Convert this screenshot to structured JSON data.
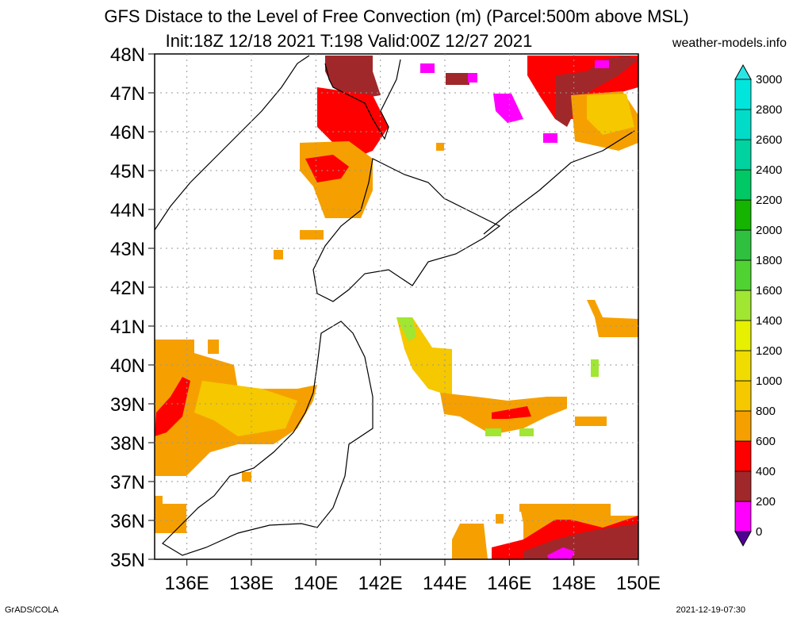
{
  "header": {
    "title_line1": "GFS Distace to the Level of Free Convection (m) (Parcel:500m above MSL)",
    "title_line2": "Init:18Z 12/18 2021 T:198 Valid:00Z 12/27 2021",
    "site": "weather-models.info"
  },
  "footer": {
    "left": "GrADS/COLA",
    "right": "2021-12-19-07:30"
  },
  "map": {
    "lat_labels": [
      "48N",
      "47N",
      "46N",
      "45N",
      "44N",
      "43N",
      "42N",
      "41N",
      "40N",
      "39N",
      "38N",
      "37N",
      "36N",
      "35N"
    ],
    "lon_labels": [
      "136E",
      "138E",
      "140E",
      "142E",
      "144E",
      "146E",
      "148E",
      "150E"
    ],
    "lat_range": [
      35,
      48
    ],
    "lon_range": [
      135,
      150
    ],
    "grid": "dotted"
  },
  "colorbar": {
    "labels": [
      "0",
      "200",
      "400",
      "600",
      "800",
      "1000",
      "1200",
      "1400",
      "1600",
      "1800",
      "2000",
      "2200",
      "2400",
      "2600",
      "2800",
      "3000"
    ],
    "colors": [
      "#ff00ff",
      "#a0282a",
      "#ff0000",
      "#f5a000",
      "#f5c800",
      "#f0dc00",
      "#e6f000",
      "#a0e632",
      "#50d232",
      "#30c040",
      "#14b400",
      "#00c864",
      "#00d2a0",
      "#00dcc8",
      "#00e6dc"
    ],
    "over_color": "#28e6e6",
    "under_color": "#500096"
  }
}
